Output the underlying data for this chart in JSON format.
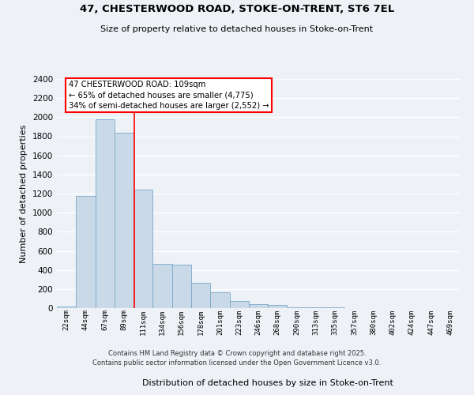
{
  "title1": "47, CHESTERWOOD ROAD, STOKE-ON-TRENT, ST6 7EL",
  "title2": "Size of property relative to detached houses in Stoke-on-Trent",
  "xlabel": "Distribution of detached houses by size in Stoke-on-Trent",
  "ylabel": "Number of detached properties",
  "bin_labels": [
    "22sqm",
    "44sqm",
    "67sqm",
    "89sqm",
    "111sqm",
    "134sqm",
    "156sqm",
    "178sqm",
    "201sqm",
    "223sqm",
    "246sqm",
    "268sqm",
    "290sqm",
    "313sqm",
    "335sqm",
    "357sqm",
    "380sqm",
    "402sqm",
    "424sqm",
    "447sqm",
    "469sqm"
  ],
  "bar_heights": [
    20,
    1175,
    1975,
    1840,
    1240,
    460,
    455,
    265,
    165,
    75,
    40,
    35,
    10,
    8,
    5,
    3,
    2,
    1,
    1,
    1,
    1
  ],
  "bar_color": "#c9d9e8",
  "bar_edge_color": "#7aa8c9",
  "annotation_title": "47 CHESTERWOOD ROAD: 109sqm",
  "annotation_line1": "← 65% of detached houses are smaller (4,775)",
  "annotation_line2": "34% of semi-detached houses are larger (2,552) →",
  "ylim": [
    0,
    2400
  ],
  "yticks": [
    0,
    200,
    400,
    600,
    800,
    1000,
    1200,
    1400,
    1600,
    1800,
    2000,
    2200,
    2400
  ],
  "redline_x": 3.52,
  "footer1": "Contains HM Land Registry data © Crown copyright and database right 2025.",
  "footer2": "Contains public sector information licensed under the Open Government Licence v3.0.",
  "bg_color": "#eef2f7",
  "grid_color": "#ffffff"
}
